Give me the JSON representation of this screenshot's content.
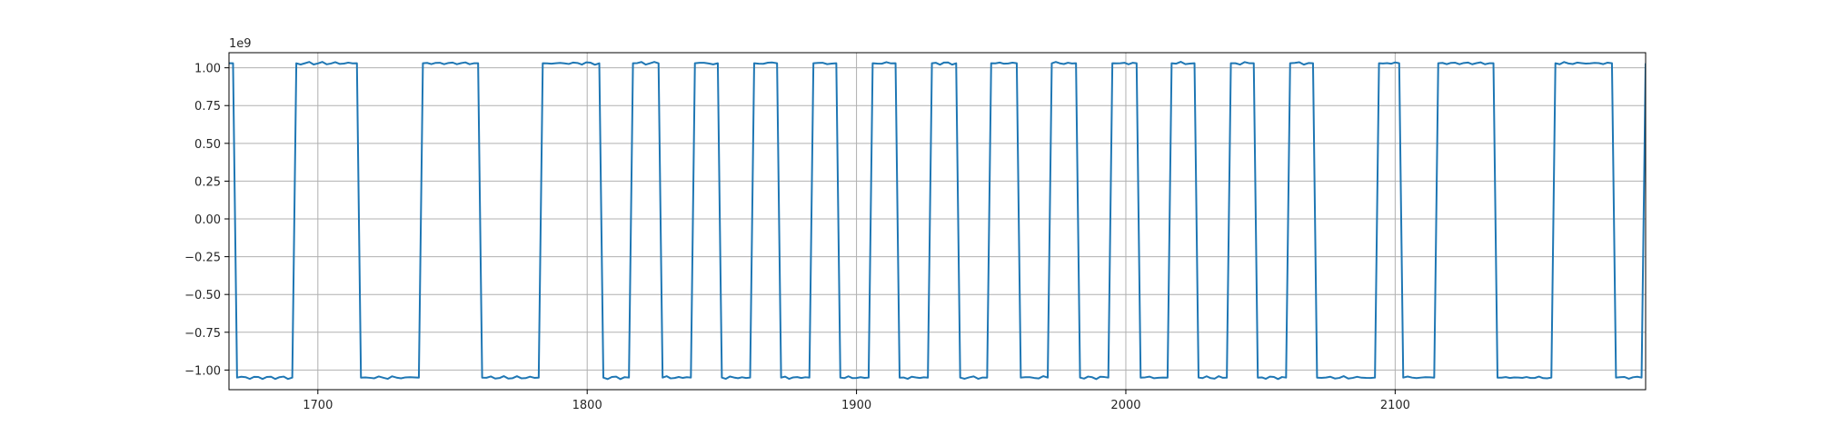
{
  "chart_data": {
    "type": "line",
    "title": "",
    "xlabel": "",
    "ylabel": "",
    "x_offset_label": "",
    "y_offset_label": "1e9",
    "xlim": [
      1667,
      2193
    ],
    "ylim": [
      -1.13,
      1.1
    ],
    "grid": true,
    "legend": "none",
    "line_color": "#1f77b4",
    "grid_color": "#b0b0b0",
    "x_ticks": [
      1700,
      1800,
      1900,
      2000,
      2100
    ],
    "y_ticks": [
      -1.0,
      -0.75,
      -0.5,
      -0.25,
      0.0,
      0.25,
      0.5,
      0.75,
      1.0
    ],
    "x_tick_labels": [
      "1700",
      "1800",
      "1900",
      "2000",
      "2100"
    ],
    "y_tick_labels": [
      "−1.00",
      "−0.75",
      "−0.50",
      "−0.25",
      "0.00",
      "0.25",
      "0.50",
      "0.75",
      "1.00"
    ],
    "series": [
      {
        "values_unit": "1e9",
        "high_level": 1.03,
        "low_level": -1.05,
        "start_x": 1667,
        "end_x": 2193,
        "start_level": "high",
        "transitions": [
          [
            1668.5,
            1670.0
          ],
          [
            1690.5,
            1692.0
          ],
          [
            1714.5,
            1716.0
          ],
          [
            1737.5,
            1739.0
          ],
          [
            1759.5,
            1761.0
          ],
          [
            1782.0,
            1783.5
          ],
          [
            1804.5,
            1806.0
          ],
          [
            1815.5,
            1817.0
          ],
          [
            1826.5,
            1828.0
          ],
          [
            1838.5,
            1840.0
          ],
          [
            1848.5,
            1850.0
          ],
          [
            1860.5,
            1862.0
          ],
          [
            1870.5,
            1872.0
          ],
          [
            1882.5,
            1884.0
          ],
          [
            1892.5,
            1894.0
          ],
          [
            1904.5,
            1906.0
          ],
          [
            1914.5,
            1916.0
          ],
          [
            1926.5,
            1928.0
          ],
          [
            1937.0,
            1938.5
          ],
          [
            1948.5,
            1950.0
          ],
          [
            1959.5,
            1961.0
          ],
          [
            1971.0,
            1972.5
          ],
          [
            1981.5,
            1983.0
          ],
          [
            1993.5,
            1995.0
          ],
          [
            2004.0,
            2005.5
          ],
          [
            2015.5,
            2017.0
          ],
          [
            2025.5,
            2027.0
          ],
          [
            2037.5,
            2039.0
          ],
          [
            2047.5,
            2049.0
          ],
          [
            2059.5,
            2061.0
          ],
          [
            2069.5,
            2071.0
          ],
          [
            2092.5,
            2094.0
          ],
          [
            2101.5,
            2103.0
          ],
          [
            2114.5,
            2116.0
          ],
          [
            2136.5,
            2138.0
          ],
          [
            2158.0,
            2159.5
          ],
          [
            2180.5,
            2182.0
          ],
          [
            2191.5,
            2193.0
          ]
        ]
      }
    ]
  }
}
